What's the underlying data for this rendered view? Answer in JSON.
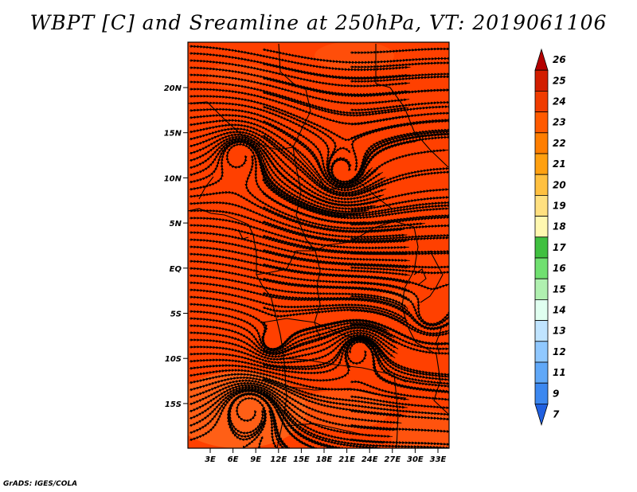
{
  "title": "WBPT [C] and Sreamline at 250hPa, VT: 2019061106",
  "credit": "GrADS: IGES/COLA",
  "map": {
    "lon_ticks": [
      "3E",
      "6E",
      "9E",
      "12E",
      "15E",
      "18E",
      "21E",
      "24E",
      "27E",
      "30E",
      "33E"
    ],
    "lat_ticks": [
      "20N",
      "15N",
      "10N",
      "5N",
      "EQ",
      "5S",
      "10S",
      "15S"
    ],
    "field_colors": {
      "base": "#ff4000",
      "warm": "#fa3c00",
      "cool": "#ff6a1e"
    }
  },
  "colorbar": {
    "labels": [
      "26",
      "25",
      "24",
      "23",
      "22",
      "21",
      "20",
      "19",
      "18",
      "17",
      "16",
      "15",
      "14",
      "13",
      "12",
      "11",
      "9",
      "7"
    ],
    "colors": [
      "#b40000",
      "#d21e00",
      "#f03c00",
      "#ff5a00",
      "#ff7e00",
      "#ffa010",
      "#ffc040",
      "#ffe080",
      "#fff8b0",
      "#40c040",
      "#70e070",
      "#b0f0b0",
      "#e0fff0",
      "#c0e4ff",
      "#90c8ff",
      "#60a8f8",
      "#3c88f0",
      "#2060e0"
    ]
  }
}
